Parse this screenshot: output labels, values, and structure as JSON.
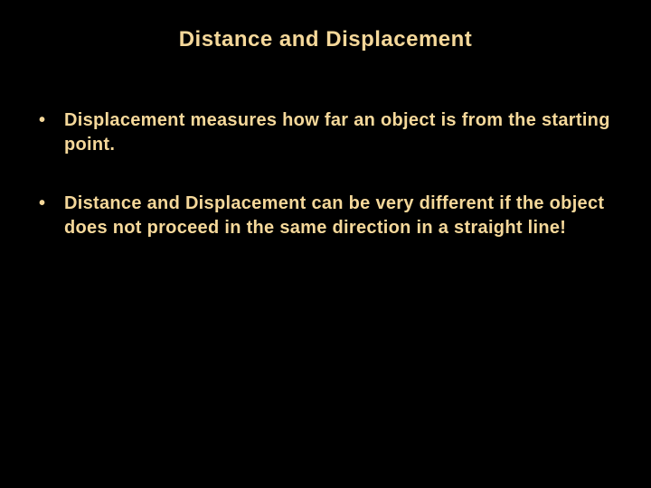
{
  "slide": {
    "title": "Distance and Displacement",
    "bullets": [
      "Displacement measures how far an object is from the starting point.",
      "Distance and Displacement can be very different if the object does not proceed in the same direction in a straight line!"
    ],
    "style": {
      "background_color": "#000000",
      "text_color": "#f5d89a",
      "title_fontsize": 24,
      "body_fontsize": 20,
      "font_family": "Verdana, Geneva, sans-serif",
      "font_weight": "bold"
    }
  }
}
